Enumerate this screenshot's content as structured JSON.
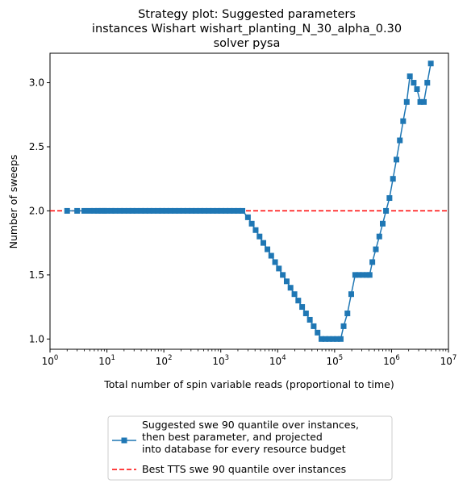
{
  "chart_data": {
    "type": "line",
    "title_lines": [
      "Strategy plot: Suggested parameters",
      "instances Wishart wishart_planting_N_30_alpha_0.30",
      "solver pysa"
    ],
    "xlabel": "Total number of spin variable reads (proportional to time)",
    "ylabel": "Number of sweeps",
    "xscale": "log",
    "xlim": [
      1,
      10000000
    ],
    "ylim": [
      0.92,
      3.23
    ],
    "x_ticks": [
      {
        "value": 1,
        "base": "10",
        "exp": "0"
      },
      {
        "value": 10,
        "base": "10",
        "exp": "1"
      },
      {
        "value": 100,
        "base": "10",
        "exp": "2"
      },
      {
        "value": 1000,
        "base": "10",
        "exp": "3"
      },
      {
        "value": 10000,
        "base": "10",
        "exp": "4"
      },
      {
        "value": 100000,
        "base": "10",
        "exp": "5"
      },
      {
        "value": 1000000,
        "base": "10",
        "exp": "6"
      },
      {
        "value": 10000000,
        "base": "10",
        "exp": "7"
      }
    ],
    "y_ticks": [
      {
        "value": 1.0,
        "label": "1.0"
      },
      {
        "value": 1.5,
        "label": "1.5"
      },
      {
        "value": 2.0,
        "label": "2.0"
      },
      {
        "value": 2.5,
        "label": "2.5"
      },
      {
        "value": 3.0,
        "label": "3.0"
      }
    ],
    "grid": false,
    "legend_placement": "below chart",
    "series": [
      {
        "name": "Suggested swe 90 quantile over instances,\n then best parameter, and projected\n into database for every resource budget",
        "color": "#1f77b4",
        "marker": "square",
        "points": [
          [
            2,
            2.0
          ],
          [
            3,
            2.0
          ],
          [
            4,
            2.0
          ],
          [
            5,
            2.0
          ],
          [
            6,
            2.0
          ],
          [
            7,
            2.0
          ],
          [
            8,
            2.0
          ],
          [
            9,
            2.0
          ],
          [
            10,
            2.0
          ],
          [
            12,
            2.0
          ],
          [
            14,
            2.0
          ],
          [
            17,
            2.0
          ],
          [
            20,
            2.0
          ],
          [
            24,
            2.0
          ],
          [
            28,
            2.0
          ],
          [
            33,
            2.0
          ],
          [
            40,
            2.0
          ],
          [
            47,
            2.0
          ],
          [
            56,
            2.0
          ],
          [
            66,
            2.0
          ],
          [
            79,
            2.0
          ],
          [
            93,
            2.0
          ],
          [
            110,
            2.0
          ],
          [
            131,
            2.0
          ],
          [
            156,
            2.0
          ],
          [
            185,
            2.0
          ],
          [
            219,
            2.0
          ],
          [
            260,
            2.0
          ],
          [
            309,
            2.0
          ],
          [
            366,
            2.0
          ],
          [
            435,
            2.0
          ],
          [
            516,
            2.0
          ],
          [
            612,
            2.0
          ],
          [
            726,
            2.0
          ],
          [
            861,
            2.0
          ],
          [
            1022,
            2.0
          ],
          [
            1212,
            2.0
          ],
          [
            1438,
            2.0
          ],
          [
            1706,
            2.0
          ],
          [
            2024,
            2.0
          ],
          [
            2400,
            2.0
          ],
          [
            3000,
            1.95
          ],
          [
            3500,
            1.9
          ],
          [
            4100,
            1.85
          ],
          [
            4800,
            1.8
          ],
          [
            5600,
            1.75
          ],
          [
            6600,
            1.7
          ],
          [
            7700,
            1.65
          ],
          [
            9000,
            1.6
          ],
          [
            10500,
            1.55
          ],
          [
            12300,
            1.5
          ],
          [
            14400,
            1.45
          ],
          [
            16800,
            1.4
          ],
          [
            19700,
            1.35
          ],
          [
            23000,
            1.3
          ],
          [
            26900,
            1.25
          ],
          [
            31400,
            1.2
          ],
          [
            36700,
            1.15
          ],
          [
            42900,
            1.1
          ],
          [
            50200,
            1.05
          ],
          [
            58700,
            1.0
          ],
          [
            68600,
            1.0
          ],
          [
            80200,
            1.0
          ],
          [
            93800,
            1.0
          ],
          [
            110000,
            1.0
          ],
          [
            128000,
            1.0
          ],
          [
            144000,
            1.1
          ],
          [
            168000,
            1.2
          ],
          [
            196000,
            1.35
          ],
          [
            230000,
            1.5
          ],
          [
            268000,
            1.5
          ],
          [
            313000,
            1.5
          ],
          [
            366000,
            1.5
          ],
          [
            412000,
            1.5
          ],
          [
            460000,
            1.6
          ],
          [
            530000,
            1.7
          ],
          [
            610000,
            1.8
          ],
          [
            700000,
            1.9
          ],
          [
            800000,
            2.0
          ],
          [
            920000,
            2.1
          ],
          [
            1060000,
            2.25
          ],
          [
            1220000,
            2.4
          ],
          [
            1400000,
            2.55
          ],
          [
            1600000,
            2.7
          ],
          [
            1850000,
            2.85
          ],
          [
            2100000,
            3.05
          ],
          [
            2450000,
            3.0
          ],
          [
            2800000,
            2.95
          ],
          [
            3200000,
            2.85
          ],
          [
            3700000,
            2.85
          ],
          [
            4250000,
            3.0
          ],
          [
            4900000,
            3.15
          ]
        ]
      }
    ],
    "reference_line": {
      "name": "Best TTS swe 90 quantile over instances",
      "y": 2.0,
      "color": "#ff0000",
      "style": "dashed"
    }
  }
}
